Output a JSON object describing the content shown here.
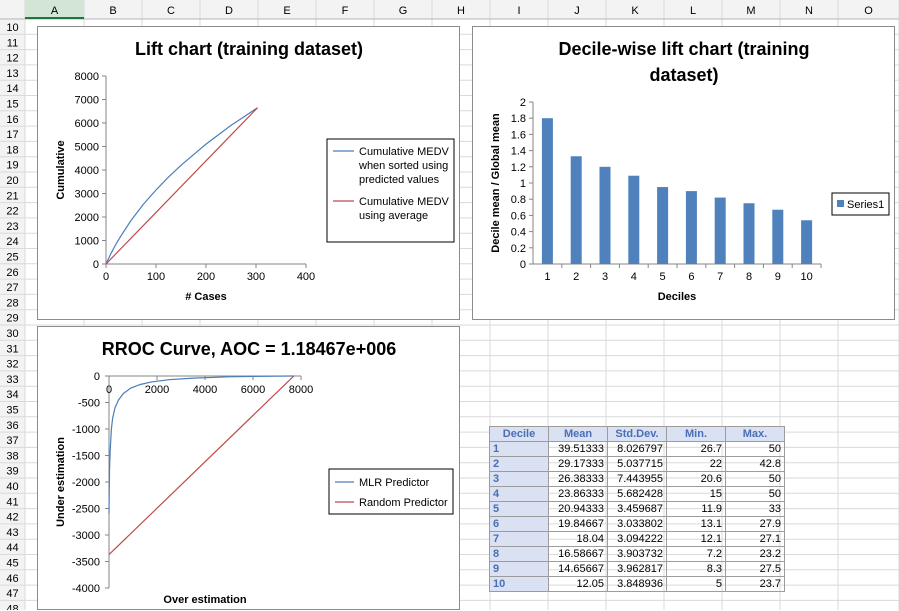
{
  "sheet": {
    "columns": [
      "A",
      "B",
      "C",
      "D",
      "E",
      "F",
      "G",
      "H",
      "I",
      "J",
      "K",
      "L",
      "M",
      "N",
      "O"
    ],
    "rows": [
      "10",
      "11",
      "12",
      "13",
      "14",
      "15",
      "16",
      "17",
      "18",
      "19",
      "20",
      "21",
      "22",
      "23",
      "24",
      "25",
      "26",
      "27",
      "28",
      "29",
      "30",
      "31",
      "32",
      "33",
      "34",
      "35",
      "36",
      "37",
      "38",
      "39",
      "40",
      "41",
      "42",
      "43",
      "44",
      "45",
      "46",
      "47",
      "48"
    ],
    "selected_column": "A"
  },
  "chart_data": [
    {
      "type": "line",
      "title": "Lift chart (training dataset)",
      "xlabel": "# Cases",
      "ylabel": "Cumulative",
      "xlim": [
        0,
        400
      ],
      "ylim": [
        0,
        8000
      ],
      "xticks": [
        "0",
        "100",
        "200",
        "300",
        "400"
      ],
      "yticks": [
        "0",
        "1000",
        "2000",
        "3000",
        "4000",
        "5000",
        "6000",
        "7000",
        "8000"
      ],
      "legend_position": "right",
      "series": [
        {
          "name": "Cumulative MEDV when sorted using predicted values",
          "color": "#4a7ebb",
          "x": [
            0,
            10,
            20,
            30,
            50,
            75,
            100,
            125,
            150,
            175,
            200,
            225,
            250,
            275,
            303
          ],
          "y": [
            0,
            450,
            850,
            1200,
            1850,
            2550,
            3150,
            3700,
            4200,
            4650,
            5100,
            5500,
            5900,
            6250,
            6650
          ]
        },
        {
          "name": "Cumulative MEDV using average",
          "color": "#be4b48",
          "x": [
            0,
            303
          ],
          "y": [
            0,
            6650
          ]
        }
      ]
    },
    {
      "type": "bar",
      "title": "Decile-wise lift chart (training dataset)",
      "xlabel": "Deciles",
      "ylabel": "Decile mean / Global mean",
      "ylim": [
        0,
        2
      ],
      "yticks": [
        "0",
        "0.2",
        "0.4",
        "0.6",
        "0.8",
        "1",
        "1.2",
        "1.4",
        "1.6",
        "1.8",
        "2"
      ],
      "categories": [
        "1",
        "2",
        "3",
        "4",
        "5",
        "6",
        "7",
        "8",
        "9",
        "10"
      ],
      "legend_position": "right",
      "series": [
        {
          "name": "Series1",
          "color": "#4f81bd",
          "values": [
            1.8,
            1.33,
            1.2,
            1.09,
            0.95,
            0.9,
            0.82,
            0.75,
            0.67,
            0.54
          ]
        }
      ]
    },
    {
      "type": "line",
      "title": "RROC Curve, AOC = 1.18467e+006",
      "xlabel": "Over estimation",
      "ylabel": "Under estimation",
      "xlim": [
        0,
        8000
      ],
      "ylim": [
        -4000,
        0
      ],
      "xticks": [
        "0",
        "2000",
        "4000",
        "6000",
        "8000"
      ],
      "yticks": [
        "0",
        "-500",
        "-1000",
        "-1500",
        "-2000",
        "-2500",
        "-3000",
        "-3500",
        "-4000"
      ],
      "legend_position": "right",
      "series": [
        {
          "name": "MLR Predictor",
          "color": "#4a7ebb",
          "x": [
            0,
            20,
            50,
            100,
            150,
            250,
            400,
            600,
            900,
            1300,
            1800,
            2500,
            3500,
            5000,
            6500,
            7700
          ],
          "y": [
            -2600,
            -1800,
            -1400,
            -1000,
            -800,
            -600,
            -450,
            -330,
            -230,
            -160,
            -110,
            -70,
            -40,
            -15,
            -5,
            0
          ]
        },
        {
          "name": "Random Predictor",
          "color": "#be4b48",
          "x": [
            0,
            7700
          ],
          "y": [
            -3370,
            0
          ]
        }
      ]
    }
  ],
  "decile_table": {
    "headers": [
      "Decile",
      "Mean",
      "Std.Dev.",
      "Min.",
      "Max."
    ],
    "rows": [
      [
        "1",
        "39.51333",
        "8.026797",
        "26.7",
        "50"
      ],
      [
        "2",
        "29.17333",
        "5.037715",
        "22",
        "42.8"
      ],
      [
        "3",
        "26.38333",
        "7.443955",
        "20.6",
        "50"
      ],
      [
        "4",
        "23.86333",
        "5.682428",
        "15",
        "50"
      ],
      [
        "5",
        "20.94333",
        "3.459687",
        "11.9",
        "33"
      ],
      [
        "6",
        "19.84667",
        "3.033802",
        "13.1",
        "27.9"
      ],
      [
        "7",
        "18.04",
        "3.094222",
        "12.1",
        "27.1"
      ],
      [
        "8",
        "16.58667",
        "3.903732",
        "7.2",
        "23.2"
      ],
      [
        "9",
        "14.65667",
        "3.962817",
        "8.3",
        "27.5"
      ],
      [
        "10",
        "12.05",
        "3.848936",
        "5",
        "23.7"
      ]
    ]
  }
}
